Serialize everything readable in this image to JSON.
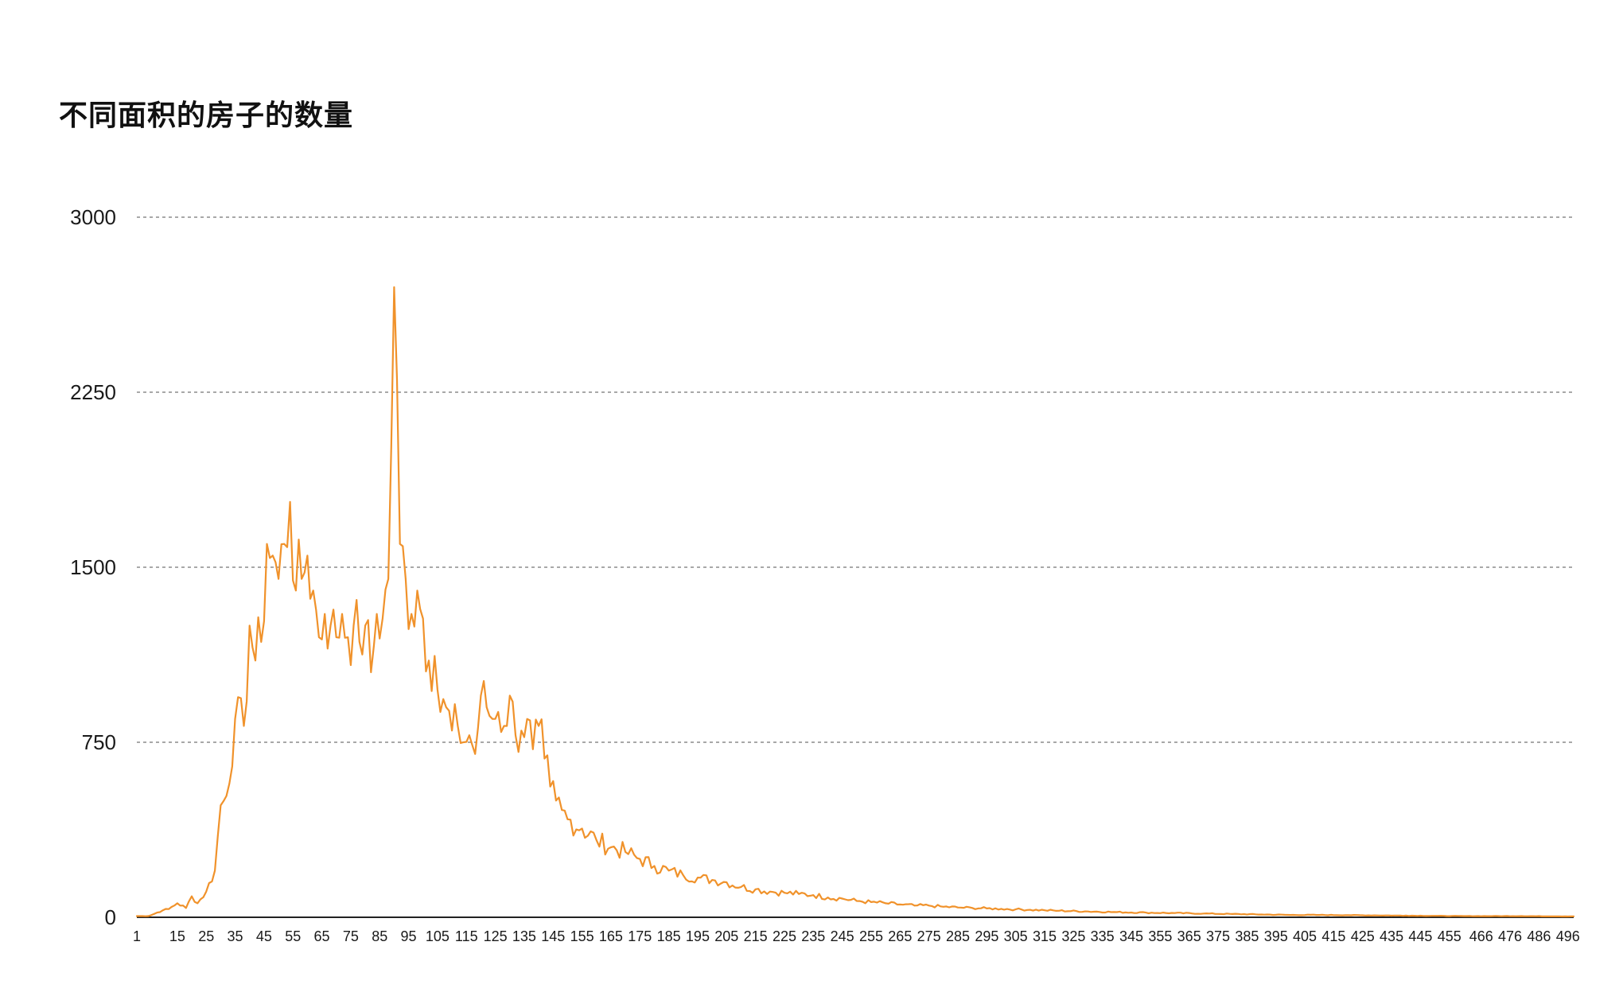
{
  "chart_data": {
    "type": "line",
    "title": "不同面积的房子的数量",
    "xlabel": "",
    "ylabel": "",
    "ylim": [
      0,
      3000
    ],
    "yticks": [
      0,
      750,
      1500,
      2250,
      3000
    ],
    "xticks": [
      "1",
      "15",
      "25",
      "35",
      "45",
      "55",
      "65",
      "75",
      "85",
      "95",
      "105",
      "115",
      "125",
      "135",
      "145",
      "155",
      "165",
      "175",
      "185",
      "195",
      "205",
      "215",
      "225",
      "235",
      "245",
      "255",
      "265",
      "275",
      "285",
      "295",
      "305",
      "315",
      "325",
      "335",
      "345",
      "355",
      "365",
      "375",
      "385",
      "395",
      "405",
      "415",
      "425",
      "435",
      "445",
      "455",
      "466",
      "476",
      "486",
      "496"
    ],
    "grid": true,
    "legend": "none",
    "colors": {
      "series": "#f0922b"
    },
    "series": [
      {
        "x": [
          1,
          5,
          10,
          12,
          15,
          18,
          20,
          22,
          25,
          28,
          30,
          32,
          35,
          38,
          40,
          42,
          44,
          46,
          48,
          50,
          52,
          54,
          56,
          58,
          60,
          62,
          64,
          66,
          68,
          70,
          72,
          74,
          76,
          78,
          80,
          82,
          84,
          86,
          88,
          90,
          92,
          94,
          96,
          98,
          100,
          102,
          104,
          106,
          108,
          110,
          112,
          114,
          116,
          118,
          120,
          122,
          124,
          126,
          128,
          130,
          132,
          134,
          136,
          138,
          140,
          142,
          144,
          146,
          148,
          150,
          155,
          160,
          165,
          170,
          175,
          180,
          185,
          190,
          195,
          200,
          205,
          210,
          215,
          220,
          225,
          230,
          235,
          240,
          245,
          250,
          255,
          260,
          265,
          270,
          275,
          280,
          285,
          290,
          295,
          300,
          305,
          310,
          315,
          320,
          330,
          340,
          350,
          360,
          370,
          380,
          390,
          400,
          410,
          420,
          430,
          440,
          450,
          460,
          470,
          480,
          490,
          498
        ],
        "values": [
          5,
          5,
          30,
          35,
          60,
          40,
          90,
          60,
          110,
          200,
          480,
          520,
          850,
          820,
          1250,
          1100,
          1180,
          1600,
          1550,
          1450,
          1600,
          1780,
          1400,
          1450,
          1550,
          1400,
          1200,
          1300,
          1250,
          1200,
          1300,
          1200,
          1250,
          1180,
          1250,
          1050,
          1300,
          1280,
          1450,
          2700,
          1600,
          1450,
          1300,
          1400,
          1280,
          1100,
          1120,
          880,
          900,
          800,
          820,
          750,
          780,
          700,
          950,
          900,
          850,
          880,
          820,
          950,
          780,
          800,
          850,
          720,
          820,
          680,
          560,
          500,
          460,
          420,
          380,
          330,
          300,
          280,
          250,
          220,
          200,
          180,
          170,
          160,
          150,
          130,
          120,
          110,
          105,
          100,
          95,
          85,
          80,
          70,
          65,
          60,
          55,
          50,
          50,
          45,
          42,
          40,
          38,
          36,
          34,
          32,
          30,
          28,
          25,
          22,
          20,
          18,
          16,
          14,
          12,
          10,
          10,
          9,
          8,
          7,
          6,
          5,
          5,
          5,
          4,
          4
        ]
      }
    ]
  }
}
